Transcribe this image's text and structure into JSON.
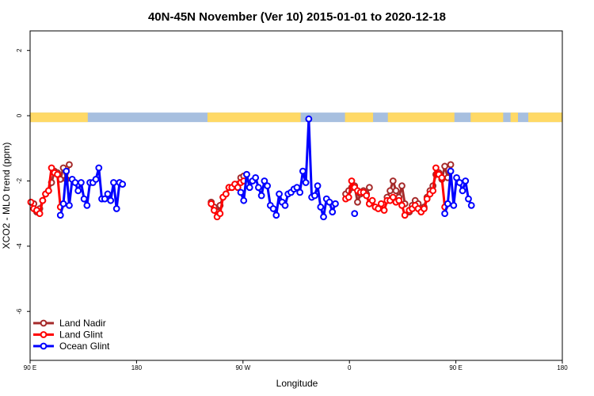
{
  "chart_data": {
    "type": "line",
    "title": "40N-45N November (Ver 10)   2015-01-01 to 2020-12-18",
    "xlabel": "Longitude",
    "ylabel": "XCO2 - MLO trend (ppm)",
    "xlim": [
      -90,
      270
    ],
    "ylim": [
      -7.5,
      2.6
    ],
    "yticks": [
      2,
      0,
      -2,
      -4,
      -6
    ],
    "xticks": [
      {
        "value": -90,
        "label": "90 E"
      },
      {
        "value": -18,
        "label": "180"
      },
      {
        "value": 54,
        "label": "90 W"
      },
      {
        "value": 126,
        "label": "0"
      },
      {
        "value": 198,
        "label": "90 E"
      },
      {
        "value": 270,
        "label": "180"
      }
    ],
    "grid": false,
    "legend_position": "bottom-left",
    "land_mask": {
      "y": -0.05,
      "land_color": "#FFD966",
      "ocean_color": "#A7BFDF",
      "land_ranges": [
        [
          -90,
          -51
        ],
        [
          30,
          93
        ],
        [
          123,
          142
        ],
        [
          152,
          197
        ],
        [
          208,
          230
        ],
        [
          235,
          240
        ],
        [
          247,
          270
        ]
      ]
    },
    "series": [
      {
        "name": "Land Nadir",
        "color": "#A52A2A",
        "segments": [
          [
            [
              -87.5,
              -2.7
            ],
            [
              -85.5,
              -2.95
            ],
            [
              -83.5,
              -2.85
            ],
            [
              -81.5,
              -2.6
            ],
            [
              -79.5,
              -2.4
            ],
            [
              -77.5,
              -2.3
            ],
            [
              -75.5,
              -2.05
            ],
            [
              -73.5,
              -1.7
            ],
            [
              -71.5,
              -1.75
            ],
            [
              -69.5,
              -1.95
            ],
            [
              -67.5,
              -1.6
            ],
            [
              -65.5,
              -1.95
            ],
            [
              -63.5,
              -1.5
            ]
          ],
          [
            [
              32.5,
              -2.65
            ],
            [
              34.5,
              -2.8
            ],
            [
              36.5,
              -2.95
            ],
            [
              38.5,
              -2.75
            ],
            [
              40.5,
              -2.5
            ],
            [
              42.5,
              -2.4
            ],
            [
              44.5,
              -2.2
            ],
            [
              46.5,
              -2.2
            ],
            [
              48.5,
              -2.15
            ],
            [
              50.5,
              -2.1
            ],
            [
              52.5,
              -1.9
            ],
            [
              54.5,
              -1.85
            ],
            [
              56.5,
              -1.8
            ]
          ],
          [
            [
              123.5,
              -2.4
            ],
            [
              125.5,
              -2.3
            ],
            [
              127.5,
              -2.2
            ],
            [
              129.5,
              -2.15
            ],
            [
              131.5,
              -2.65
            ],
            [
              133.5,
              -2.4
            ],
            [
              135.5,
              -2.3
            ],
            [
              137.5,
              -2.4
            ],
            [
              139.5,
              -2.2
            ]
          ],
          [
            [
              151.5,
              -2.5
            ],
            [
              153.5,
              -2.3
            ],
            [
              155.5,
              -2.0
            ],
            [
              157.5,
              -2.3
            ],
            [
              159.5,
              -2.5
            ],
            [
              161.5,
              -2.15
            ],
            [
              163.5,
              -2.7
            ]
          ],
          [
            [
              166.5,
              -2.95
            ],
            [
              168.5,
              -2.75
            ],
            [
              170.5,
              -2.6
            ],
            [
              172.5,
              -2.7
            ],
            [
              174.5,
              -2.9
            ],
            [
              176.5,
              -2.8
            ],
            [
              178.5,
              -2.5
            ],
            [
              180.5,
              -2.3
            ],
            [
              182.5,
              -2.15
            ],
            [
              184.5,
              -1.8
            ],
            [
              186.5,
              -1.75
            ],
            [
              188.5,
              -1.95
            ],
            [
              190.5,
              -1.55
            ],
            [
              192.5,
              -1.9
            ],
            [
              194.5,
              -1.5
            ]
          ]
        ]
      },
      {
        "name": "Land Glint",
        "color": "#FF0000",
        "segments": [
          [
            [
              -89.5,
              -2.65
            ],
            [
              -87.5,
              -2.85
            ],
            [
              -85.5,
              -2.9
            ],
            [
              -83.5,
              -3.0
            ],
            [
              -81.5,
              -2.6
            ],
            [
              -79.5,
              -2.4
            ],
            [
              -77.5,
              -2.3
            ],
            [
              -75.5,
              -1.6
            ],
            [
              -73.5,
              -1.75
            ],
            [
              -71.5,
              -1.8
            ],
            [
              -69.5,
              -2.8
            ]
          ],
          [
            [
              32.5,
              -2.7
            ],
            [
              34.5,
              -2.9
            ],
            [
              36.5,
              -3.1
            ],
            [
              38.5,
              -3.0
            ],
            [
              40.5,
              -2.5
            ],
            [
              42.5,
              -2.4
            ],
            [
              44.5,
              -2.2
            ],
            [
              46.5,
              -2.2
            ],
            [
              48.5,
              -2.1
            ],
            [
              50.5,
              -2.2
            ],
            [
              52.5,
              -2.05
            ],
            [
              54.5,
              -2.0
            ]
          ],
          [
            [
              123.5,
              -2.55
            ],
            [
              125.5,
              -2.5
            ],
            [
              127.5,
              -2.0
            ],
            [
              129.5,
              -2.2
            ],
            [
              131.5,
              -2.3
            ],
            [
              133.5,
              -2.35
            ],
            [
              135.5,
              -2.35
            ],
            [
              137.5,
              -2.45
            ],
            [
              139.5,
              -2.7
            ]
          ],
          [
            [
              139.5,
              -2.7
            ],
            [
              141.5,
              -2.6
            ],
            [
              143.5,
              -2.8
            ],
            [
              145.5,
              -2.85
            ],
            [
              147.5,
              -2.7
            ],
            [
              149.5,
              -2.9
            ],
            [
              151.5,
              -2.6
            ],
            [
              153.5,
              -2.6
            ],
            [
              155.5,
              -2.5
            ],
            [
              157.5,
              -2.65
            ],
            [
              159.5,
              -2.6
            ],
            [
              161.5,
              -2.75
            ],
            [
              163.5,
              -3.05
            ]
          ],
          [
            [
              166.5,
              -2.9
            ],
            [
              168.5,
              -2.85
            ],
            [
              170.5,
              -2.75
            ],
            [
              172.5,
              -2.85
            ],
            [
              174.5,
              -2.95
            ],
            [
              176.5,
              -2.85
            ],
            [
              178.5,
              -2.55
            ],
            [
              180.5,
              -2.4
            ],
            [
              182.5,
              -2.3
            ],
            [
              184.5,
              -1.6
            ],
            [
              186.5,
              -1.8
            ],
            [
              188.5,
              -1.9
            ],
            [
              190.5,
              -2.8
            ]
          ]
        ]
      },
      {
        "name": "Ocean Glint",
        "color": "#0000FF",
        "segments": [
          [
            [
              -69.5,
              -3.05
            ],
            [
              -67.5,
              -2.7
            ],
            [
              -65.5,
              -1.7
            ],
            [
              -63.5,
              -2.75
            ],
            [
              -61.5,
              -1.95
            ],
            [
              -59.5,
              -2.05
            ],
            [
              -57.5,
              -2.3
            ],
            [
              -55.5,
              -2.05
            ],
            [
              -53.5,
              -2.55
            ],
            [
              -51.5,
              -2.75
            ],
            [
              -49.5,
              -2.05
            ],
            [
              -47.5,
              -2.05
            ],
            [
              -45.5,
              -1.95
            ],
            [
              -43.5,
              -1.6
            ],
            [
              -41.5,
              -2.55
            ],
            [
              -39.5,
              -2.55
            ],
            [
              -37.5,
              -2.4
            ],
            [
              -35.5,
              -2.6
            ],
            [
              -33.5,
              -2.05
            ],
            [
              -31.5,
              -2.85
            ],
            [
              -29.5,
              -2.05
            ],
            [
              -27.5,
              -2.1
            ]
          ],
          [
            [
              52.5,
              -2.35
            ],
            [
              54.5,
              -2.6
            ],
            [
              56.5,
              -1.8
            ],
            [
              58.5,
              -2.2
            ],
            [
              60.5,
              -2.0
            ],
            [
              62.5,
              -1.9
            ],
            [
              64.5,
              -2.2
            ],
            [
              66.5,
              -2.45
            ],
            [
              68.5,
              -2.0
            ],
            [
              70.5,
              -2.15
            ],
            [
              72.5,
              -2.75
            ],
            [
              74.5,
              -2.85
            ],
            [
              76.5,
              -3.05
            ],
            [
              78.5,
              -2.4
            ],
            [
              80.5,
              -2.65
            ],
            [
              82.5,
              -2.75
            ],
            [
              84.5,
              -2.4
            ],
            [
              86.5,
              -2.35
            ],
            [
              88.5,
              -2.25
            ],
            [
              90.5,
              -2.2
            ],
            [
              92.5,
              -2.35
            ],
            [
              94.5,
              -1.7
            ],
            [
              96.5,
              -2.05
            ],
            [
              98.5,
              -0.1
            ],
            [
              100.5,
              -2.5
            ],
            [
              102.5,
              -2.45
            ],
            [
              104.5,
              -2.15
            ],
            [
              106.5,
              -2.8
            ],
            [
              108.5,
              -3.1
            ],
            [
              110.5,
              -2.55
            ],
            [
              112.5,
              -2.65
            ],
            [
              114.5,
              -2.95
            ],
            [
              116.5,
              -2.7
            ]
          ],
          [
            [
              129.5,
              -3.0
            ]
          ],
          [
            [
              190.5,
              -3.0
            ],
            [
              192.5,
              -2.7
            ],
            [
              194.5,
              -1.7
            ],
            [
              196.5,
              -2.75
            ],
            [
              198.5,
              -1.9
            ],
            [
              200.5,
              -2.05
            ],
            [
              202.5,
              -2.3
            ],
            [
              204.5,
              -2.0
            ],
            [
              206.5,
              -2.55
            ],
            [
              208.5,
              -2.75
            ]
          ]
        ]
      }
    ]
  }
}
